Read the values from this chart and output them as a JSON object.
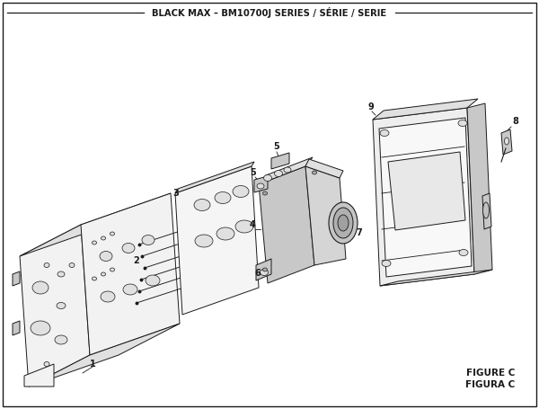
{
  "title": "BLACK MAX – BM10700J SERIES / SÉRIE / SERIE",
  "figure_label": "FIGURE C",
  "figura_label": "FIGURA C",
  "bg_color": "#ffffff",
  "line_color": "#1a1a1a",
  "fill_light": "#f2f2f2",
  "fill_mid": "#e0e0e0",
  "fill_dark": "#c8c8c8",
  "fig_width": 6.0,
  "fig_height": 4.55,
  "dpi": 100
}
